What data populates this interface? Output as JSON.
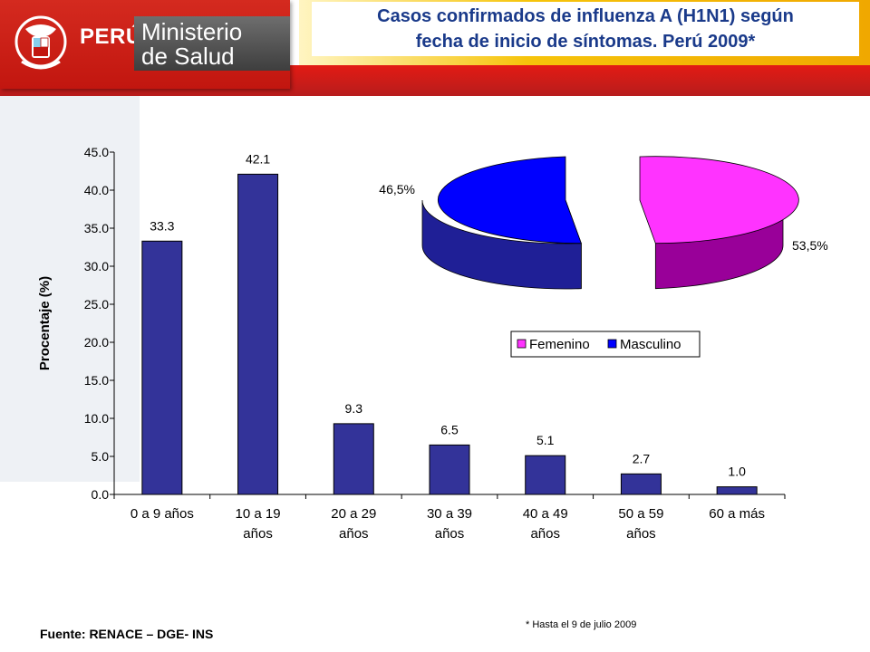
{
  "header": {
    "country": "PERÚ",
    "ministry_line1": "Ministerio",
    "ministry_line2": "de Salud",
    "title_line1": "Casos confirmados de influenza A (H1N1) según",
    "title_line2": "fecha de inicio de síntomas. Perú 2009*"
  },
  "footer": {
    "source": "Fuente: RENACE – DGE- INS",
    "note": "* Hasta el 9 de julio 2009"
  },
  "colors": {
    "brand_red": "#d42a1f",
    "bar": "#333399",
    "femenino": "#ff33ff",
    "masculino": "#0000ff",
    "title": "#1a3a8a"
  },
  "chart_data": [
    {
      "type": "bar",
      "categories": [
        [
          "0 a 9 años"
        ],
        [
          "10 a 19",
          "años"
        ],
        [
          "20 a 29",
          "años"
        ],
        [
          "30 a 39",
          "años"
        ],
        [
          "40 a 49",
          "años"
        ],
        [
          "50 a 59",
          "años"
        ],
        [
          "60 a más"
        ]
      ],
      "values": [
        33.3,
        42.1,
        9.3,
        6.5,
        5.1,
        2.7,
        1.0
      ],
      "data_labels": [
        "33.3",
        "42.1",
        "9.3",
        "6.5",
        "5.1",
        "2.7",
        "1.0"
      ],
      "ylabel": "Procentaje (%)",
      "ylim": [
        0,
        45
      ],
      "yticks": [
        "0.0",
        "5.0",
        "10.0",
        "15.0",
        "20.0",
        "25.0",
        "30.0",
        "35.0",
        "40.0",
        "45.0"
      ],
      "grid": false
    },
    {
      "type": "pie",
      "labels": [
        "Femenino",
        "Masculino"
      ],
      "values": [
        53.5,
        46.5
      ],
      "data_labels": [
        "53,5%",
        "46,5%"
      ],
      "colors": [
        "#ff33ff",
        "#0000ff"
      ],
      "legend": "bottom"
    }
  ]
}
